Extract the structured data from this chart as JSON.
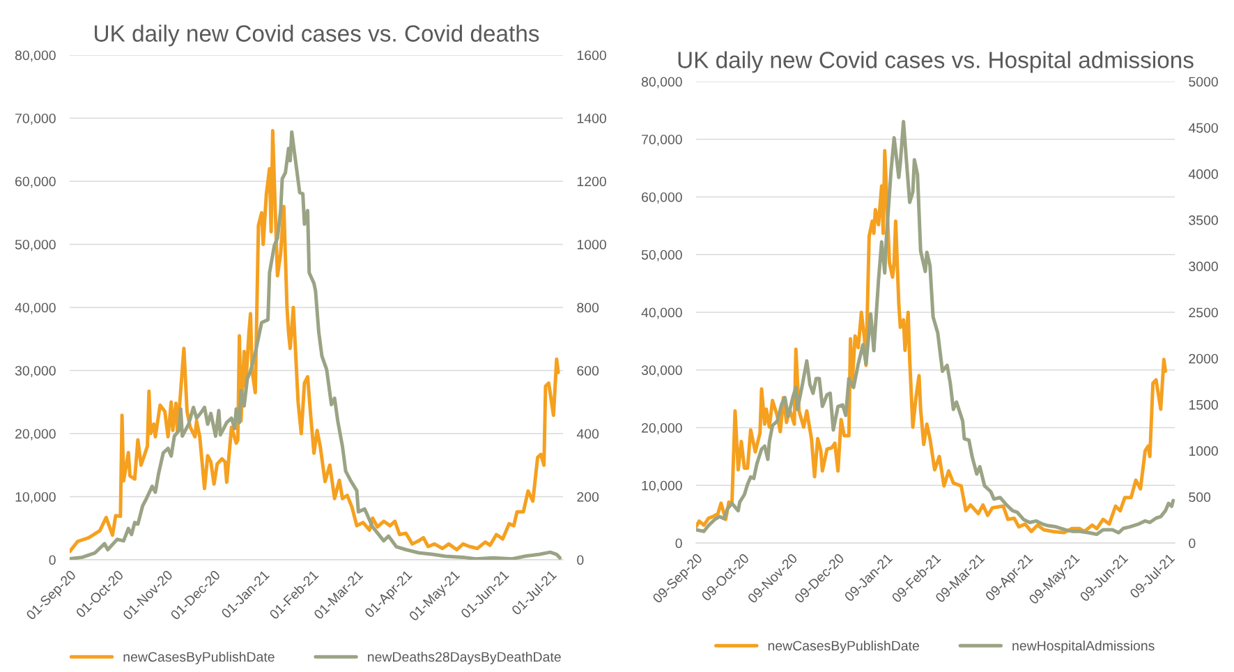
{
  "chart_data": [
    {
      "type": "line",
      "title": "UK daily new Covid cases vs. Covid deaths",
      "legend": "bottom",
      "grid": "y",
      "marker": "none",
      "line_style": "solid",
      "xlim": [
        "2020-09-01",
        "2021-07-09"
      ],
      "xticks": [
        {
          "value": "2020-09-01",
          "label": "01-Sep-20"
        },
        {
          "value": "2020-10-01",
          "label": "01-Oct-20"
        },
        {
          "value": "2020-11-01",
          "label": "01-Nov-20"
        },
        {
          "value": "2020-12-01",
          "label": "01-Dec-20"
        },
        {
          "value": "2021-01-01",
          "label": "01-Jan-21"
        },
        {
          "value": "2021-02-01",
          "label": "01-Feb-21"
        },
        {
          "value": "2021-03-01",
          "label": "01-Mar-21"
        },
        {
          "value": "2021-04-01",
          "label": "01-Apr-21"
        },
        {
          "value": "2021-05-01",
          "label": "01-May-21"
        },
        {
          "value": "2021-06-01",
          "label": "01-Jun-21"
        },
        {
          "value": "2021-07-01",
          "label": "01-Jul-21"
        }
      ],
      "ylim": [
        0,
        80000
      ],
      "yticks": [
        0,
        {
          "value": 10000,
          "label": "10,000"
        },
        {
          "value": 20000,
          "label": "20,000"
        },
        {
          "value": 30000,
          "label": "30,000"
        },
        {
          "value": 40000,
          "label": "40,000"
        },
        {
          "value": 50000,
          "label": "50,000"
        },
        {
          "value": 60000,
          "label": "60,000"
        },
        {
          "value": 70000,
          "label": "70,000"
        },
        {
          "value": 80000,
          "label": "80,000"
        }
      ],
      "y2lim": [
        0,
        1600
      ],
      "y2ticks": [
        0,
        200,
        400,
        600,
        800,
        1000,
        1200,
        1400,
        1600
      ],
      "series": [
        {
          "name": "newCasesByPublishDate",
          "color": "#f5a01f",
          "x": [
            "2020-09-01",
            "2020-09-06",
            "2020-09-13",
            "2020-09-20",
            "2020-09-24",
            "2020-09-28",
            "2020-09-30",
            "2020-10-03",
            "2020-10-04",
            "2020-10-05",
            "2020-10-08",
            "2020-10-09",
            "2020-10-12",
            "2020-10-14",
            "2020-10-16",
            "2020-10-20",
            "2020-10-21",
            "2020-10-22",
            "2020-10-24",
            "2020-10-25",
            "2020-10-28",
            "2020-10-31",
            "2020-11-02",
            "2020-11-04",
            "2020-11-05",
            "2020-11-07",
            "2020-11-08",
            "2020-11-12",
            "2020-11-14",
            "2020-11-16",
            "2020-11-19",
            "2020-11-20",
            "2020-11-22",
            "2020-11-25",
            "2020-11-27",
            "2020-11-29",
            "2020-12-01",
            "2020-12-03",
            "2020-12-06",
            "2020-12-08",
            "2020-12-09",
            "2020-12-12",
            "2020-12-15",
            "2020-12-16",
            "2020-12-17",
            "2020-12-18",
            "2020-12-20",
            "2020-12-21",
            "2020-12-23",
            "2020-12-24",
            "2020-12-25",
            "2020-12-27",
            "2020-12-29",
            "2020-12-31",
            "2021-01-01",
            "2021-01-03",
            "2021-01-05",
            "2021-01-06",
            "2021-01-07",
            "2021-01-08",
            "2021-01-10",
            "2021-01-12",
            "2021-01-14",
            "2021-01-16",
            "2021-01-17",
            "2021-01-18",
            "2021-01-20",
            "2021-01-23",
            "2021-01-25",
            "2021-01-27",
            "2021-01-29",
            "2021-01-31",
            "2021-02-02",
            "2021-02-04",
            "2021-02-06",
            "2021-02-09",
            "2021-02-12",
            "2021-02-15",
            "2021-02-18",
            "2021-02-20",
            "2021-02-23",
            "2021-02-26",
            "2021-03-01",
            "2021-03-05",
            "2021-03-09",
            "2021-03-11",
            "2021-03-14",
            "2021-03-18",
            "2021-03-22",
            "2021-03-25",
            "2021-03-28",
            "2021-04-01",
            "2021-04-05",
            "2021-04-09",
            "2021-04-12",
            "2021-04-15",
            "2021-04-19",
            "2021-04-24",
            "2021-04-28",
            "2021-05-03",
            "2021-05-07",
            "2021-05-11",
            "2021-05-16",
            "2021-05-21",
            "2021-05-24",
            "2021-05-28",
            "2021-06-01",
            "2021-06-05",
            "2021-06-08",
            "2021-06-10",
            "2021-06-14",
            "2021-06-17",
            "2021-06-20",
            "2021-06-23",
            "2021-06-25",
            "2021-06-27",
            "2021-06-28",
            "2021-06-30",
            "2021-07-03",
            "2021-07-05",
            "2021-07-06"
          ],
          "values": [
            1300,
            2900,
            3500,
            4600,
            6700,
            3900,
            7000,
            6900,
            22900,
            12500,
            17000,
            13300,
            12800,
            19000,
            15000,
            18000,
            26700,
            20000,
            21500,
            19500,
            24500,
            23500,
            19500,
            25000,
            20500,
            24800,
            20200,
            33500,
            23500,
            21000,
            19500,
            22000,
            19500,
            11300,
            16500,
            15500,
            12000,
            15200,
            16000,
            15500,
            12300,
            21000,
            18500,
            19000,
            35500,
            22000,
            33000,
            27500,
            36000,
            39000,
            30000,
            26500,
            53000,
            55000,
            50000,
            58000,
            62000,
            52000,
            68000,
            60000,
            45000,
            48500,
            56000,
            40000,
            36000,
            33500,
            40000,
            25000,
            20000,
            28000,
            29000,
            22700,
            16900,
            20500,
            17900,
            12400,
            15000,
            9700,
            12600,
            9700,
            10200,
            8300,
            5400,
            5900,
            4700,
            6600,
            5200,
            6100,
            5400,
            6100,
            4000,
            4200,
            2500,
            3000,
            3500,
            2100,
            2500,
            1800,
            2500,
            1600,
            2500,
            2100,
            1800,
            2800,
            2300,
            4000,
            3300,
            5700,
            5400,
            7600,
            7600,
            10900,
            9300,
            16200,
            16700,
            15000,
            27500,
            28000,
            22900,
            31800,
            29700
          ]
        },
        {
          "name": "newDeaths28DaysByDeathDate",
          "color": "#9aa384",
          "axis": "y2",
          "x": [
            "2020-09-01",
            "2020-09-09",
            "2020-09-17",
            "2020-09-23",
            "2020-09-25",
            "2020-10-01",
            "2020-10-05",
            "2020-10-08",
            "2020-10-10",
            "2020-10-12",
            "2020-10-14",
            "2020-10-17",
            "2020-10-19",
            "2020-10-23",
            "2020-10-25",
            "2020-10-27",
            "2020-10-30",
            "2020-11-02",
            "2020-11-04",
            "2020-11-06",
            "2020-11-09",
            "2020-11-10",
            "2020-11-11",
            "2020-11-15",
            "2020-11-18",
            "2020-11-20",
            "2020-11-23",
            "2020-11-25",
            "2020-11-27",
            "2020-11-29",
            "2020-12-02",
            "2020-12-04",
            "2020-12-05",
            "2020-12-09",
            "2020-12-12",
            "2020-12-14",
            "2020-12-15",
            "2020-12-17",
            "2020-12-18",
            "2020-12-20",
            "2020-12-22",
            "2020-12-24",
            "2020-12-27",
            "2020-12-31",
            "2021-01-04",
            "2021-01-05",
            "2021-01-08",
            "2021-01-10",
            "2021-01-12",
            "2021-01-13",
            "2021-01-15",
            "2021-01-17",
            "2021-01-18",
            "2021-01-19",
            "2021-01-22",
            "2021-01-24",
            "2021-01-26",
            "2021-01-27",
            "2021-01-29",
            "2021-01-30",
            "2021-02-02",
            "2021-02-03",
            "2021-02-05",
            "2021-02-07",
            "2021-02-10",
            "2021-02-13",
            "2021-02-15",
            "2021-02-17",
            "2021-02-20",
            "2021-02-22",
            "2021-02-25",
            "2021-03-01",
            "2021-03-02",
            "2021-03-06",
            "2021-03-11",
            "2021-03-18",
            "2021-03-21",
            "2021-03-26",
            "2021-04-01",
            "2021-04-09",
            "2021-04-18",
            "2021-04-26",
            "2021-05-07",
            "2021-05-15",
            "2021-05-26",
            "2021-06-07",
            "2021-06-16",
            "2021-06-24",
            "2021-07-01",
            "2021-07-05",
            "2021-07-07"
          ],
          "values": [
            3,
            8,
            22,
            51,
            32,
            65,
            60,
            99,
            80,
            118,
            113,
            171,
            190,
            233,
            214,
            272,
            339,
            353,
            329,
            392,
            411,
            478,
            392,
            430,
            483,
            449,
            468,
            483,
            430,
            464,
            392,
            473,
            396,
            435,
            449,
            416,
            478,
            435,
            536,
            488,
            574,
            598,
            656,
            752,
            761,
            910,
            996,
            1020,
            1107,
            1208,
            1227,
            1304,
            1265,
            1356,
            1241,
            1164,
            1160,
            1064,
            1107,
            910,
            876,
            852,
            723,
            646,
            603,
            492,
            512,
            440,
            358,
            281,
            252,
            219,
            152,
            161,
            104,
            60,
            75,
            41,
            32,
            22,
            17,
            11,
            8,
            3,
            6,
            3,
            12,
            17,
            24,
            17,
            6
          ]
        }
      ]
    },
    {
      "type": "line",
      "title": "UK daily new Covid cases vs. Hospital admissions",
      "legend": "bottom",
      "grid": "y",
      "marker": "none",
      "line_style": "solid",
      "xlim": [
        "2020-09-09",
        "2021-07-13"
      ],
      "xticks": [
        {
          "value": "2020-09-09",
          "label": "09-Sep-20"
        },
        {
          "value": "2020-10-09",
          "label": "09-Oct-20"
        },
        {
          "value": "2020-11-09",
          "label": "09-Nov-20"
        },
        {
          "value": "2020-12-09",
          "label": "09-Dec-20"
        },
        {
          "value": "2021-01-09",
          "label": "09-Jan-21"
        },
        {
          "value": "2021-02-09",
          "label": "09-Feb-21"
        },
        {
          "value": "2021-03-09",
          "label": "09-Mar-21"
        },
        {
          "value": "2021-04-09",
          "label": "09-Apr-21"
        },
        {
          "value": "2021-05-09",
          "label": "09-May-21"
        },
        {
          "value": "2021-06-09",
          "label": "09-Jun-21"
        },
        {
          "value": "2021-07-09",
          "label": "09-Jul-21"
        }
      ],
      "ylim": [
        0,
        80000
      ],
      "yticks": [
        0,
        {
          "value": 10000,
          "label": "10,000"
        },
        {
          "value": 20000,
          "label": "20,000"
        },
        {
          "value": 30000,
          "label": "30,000"
        },
        {
          "value": 40000,
          "label": "40,000"
        },
        {
          "value": 50000,
          "label": "50,000"
        },
        {
          "value": 60000,
          "label": "60,000"
        },
        {
          "value": 70000,
          "label": "70,000"
        },
        {
          "value": 80000,
          "label": "80,000"
        }
      ],
      "y2lim": [
        0,
        5000
      ],
      "y2ticks": [
        0,
        500,
        1000,
        1500,
        2000,
        2500,
        3000,
        3500,
        4000,
        4500,
        5000
      ],
      "series": [
        {
          "name": "newCasesByPublishDate",
          "color": "#f5a01f",
          "x": [
            "2020-09-09",
            "2020-09-11",
            "2020-09-14",
            "2020-09-17",
            "2020-09-20",
            "2020-09-23",
            "2020-09-25",
            "2020-09-28",
            "2020-09-30",
            "2020-10-02",
            "2020-10-04",
            "2020-10-06",
            "2020-10-08",
            "2020-10-10",
            "2020-10-12",
            "2020-10-14",
            "2020-10-17",
            "2020-10-20",
            "2020-10-21",
            "2020-10-23",
            "2020-10-24",
            "2020-10-26",
            "2020-10-28",
            "2020-10-31",
            "2020-11-02",
            "2020-11-04",
            "2020-11-06",
            "2020-11-08",
            "2020-11-11",
            "2020-11-12",
            "2020-11-14",
            "2020-11-17",
            "2020-11-19",
            "2020-11-22",
            "2020-11-24",
            "2020-11-26",
            "2020-11-28",
            "2020-11-29",
            "2020-12-02",
            "2020-12-05",
            "2020-12-07",
            "2020-12-09",
            "2020-12-11",
            "2020-12-13",
            "2020-12-16",
            "2020-12-17",
            "2020-12-18",
            "2020-12-20",
            "2020-12-22",
            "2020-12-24",
            "2020-12-26",
            "2020-12-27",
            "2020-12-29",
            "2020-12-31",
            "2021-01-01",
            "2021-01-02",
            "2021-01-04",
            "2021-01-06",
            "2021-01-07",
            "2021-01-08",
            "2021-01-11",
            "2021-01-13",
            "2021-01-14",
            "2021-01-15",
            "2021-01-17",
            "2021-01-18",
            "2021-01-20",
            "2021-01-21",
            "2021-01-23",
            "2021-01-24",
            "2021-01-26",
            "2021-01-28",
            "2021-01-30",
            "2021-01-31",
            "2021-02-02",
            "2021-02-04",
            "2021-02-06",
            "2021-02-09",
            "2021-02-12",
            "2021-02-15",
            "2021-02-18",
            "2021-02-21",
            "2021-02-26",
            "2021-03-01",
            "2021-03-04",
            "2021-03-09",
            "2021-03-12",
            "2021-03-15",
            "2021-03-18",
            "2021-03-25",
            "2021-03-28",
            "2021-04-01",
            "2021-04-04",
            "2021-04-08",
            "2021-04-12",
            "2021-04-16",
            "2021-04-20",
            "2021-04-26",
            "2021-05-03",
            "2021-05-08",
            "2021-05-13",
            "2021-05-16",
            "2021-05-21",
            "2021-05-24",
            "2021-05-28",
            "2021-06-01",
            "2021-06-05",
            "2021-06-08",
            "2021-06-11",
            "2021-06-15",
            "2021-06-18",
            "2021-06-21",
            "2021-06-24",
            "2021-06-26",
            "2021-06-27",
            "2021-06-29",
            "2021-07-01",
            "2021-07-04",
            "2021-07-06",
            "2021-07-07"
          ],
          "values": [
            2800,
            3800,
            3100,
            4300,
            4600,
            5100,
            6900,
            4100,
            7100,
            6900,
            22900,
            12700,
            17600,
            13000,
            13000,
            19600,
            15800,
            19100,
            26700,
            20600,
            23200,
            20100,
            24700,
            22100,
            19300,
            25200,
            20900,
            23200,
            20600,
            33600,
            22900,
            20100,
            22900,
            18100,
            11500,
            18100,
            16000,
            12500,
            16300,
            16500,
            17300,
            12500,
            21400,
            18600,
            18600,
            35400,
            27200,
            35900,
            33900,
            40000,
            35400,
            30800,
            53200,
            55800,
            53700,
            57800,
            55200,
            61900,
            53700,
            68000,
            48600,
            46100,
            48600,
            55800,
            41500,
            37400,
            38700,
            33400,
            40000,
            31800,
            20100,
            25200,
            29000,
            23200,
            17100,
            20600,
            18100,
            12700,
            15000,
            9900,
            12500,
            10400,
            9900,
            5600,
            6600,
            5100,
            6600,
            4800,
            6100,
            6400,
            4100,
            4300,
            2800,
            3300,
            2000,
            3100,
            2300,
            2000,
            1800,
            2500,
            2500,
            2000,
            3100,
            2500,
            4100,
            3300,
            6400,
            5600,
            7900,
            7900,
            10900,
            9400,
            16000,
            16800,
            15000,
            27700,
            28300,
            23200,
            31800,
            29800
          ]
        },
        {
          "name": "newHospitalAdmissions",
          "color": "#9aa384",
          "axis": "y2",
          "x": [
            "2020-09-09",
            "2020-09-14",
            "2020-09-17",
            "2020-09-21",
            "2020-09-24",
            "2020-09-27",
            "2020-09-29",
            "2020-10-02",
            "2020-10-06",
            "2020-10-07",
            "2020-10-10",
            "2020-10-12",
            "2020-10-14",
            "2020-10-16",
            "2020-10-18",
            "2020-10-21",
            "2020-10-23",
            "2020-10-25",
            "2020-10-26",
            "2020-10-28",
            "2020-10-31",
            "2020-11-03",
            "2020-11-05",
            "2020-11-07",
            "2020-11-10",
            "2020-11-12",
            "2020-11-13",
            "2020-11-16",
            "2020-11-19",
            "2020-11-21",
            "2020-11-23",
            "2020-11-25",
            "2020-11-27",
            "2020-11-29",
            "2020-12-02",
            "2020-12-04",
            "2020-12-06",
            "2020-12-09",
            "2020-12-12",
            "2020-12-14",
            "2020-12-16",
            "2020-12-19",
            "2020-12-22",
            "2020-12-25",
            "2020-12-27",
            "2020-12-30",
            "2021-01-01",
            "2021-01-04",
            "2021-01-06",
            "2021-01-08",
            "2021-01-09",
            "2021-01-12",
            "2021-01-14",
            "2021-01-17",
            "2021-01-18",
            "2021-01-20",
            "2021-01-22",
            "2021-01-24",
            "2021-01-26",
            "2021-01-27",
            "2021-01-29",
            "2021-01-31",
            "2021-02-03",
            "2021-02-04",
            "2021-02-06",
            "2021-02-08",
            "2021-02-11",
            "2021-02-14",
            "2021-02-17",
            "2021-02-19",
            "2021-02-21",
            "2021-02-23",
            "2021-02-27",
            "2021-02-28",
            "2021-03-03",
            "2021-03-05",
            "2021-03-08",
            "2021-03-10",
            "2021-03-13",
            "2021-03-17",
            "2021-03-19",
            "2021-03-23",
            "2021-03-27",
            "2021-03-31",
            "2021-04-03",
            "2021-04-07",
            "2021-04-11",
            "2021-04-15",
            "2021-04-19",
            "2021-04-22",
            "2021-04-28",
            "2021-05-04",
            "2021-05-08",
            "2021-05-13",
            "2021-05-19",
            "2021-05-24",
            "2021-05-28",
            "2021-06-03",
            "2021-06-07",
            "2021-06-10",
            "2021-06-14",
            "2021-06-20",
            "2021-06-24",
            "2021-06-27",
            "2021-07-01",
            "2021-07-04",
            "2021-07-07",
            "2021-07-09",
            "2021-07-11",
            "2021-07-12"
          ],
          "values": [
            143,
            127,
            191,
            255,
            286,
            264,
            366,
            430,
            350,
            445,
            525,
            636,
            716,
            700,
            859,
            1018,
            1050,
            907,
            1098,
            1273,
            1321,
            1511,
            1575,
            1368,
            1575,
            1686,
            1448,
            1702,
            1973,
            1718,
            1623,
            1782,
            1782,
            1480,
            1607,
            1623,
            1225,
            1480,
            1496,
            1384,
            1782,
            1686,
            1941,
            2148,
            1941,
            2482,
            2084,
            2848,
            3262,
            2927,
            3293,
            4025,
            4391,
            3962,
            4121,
            4566,
            4121,
            3691,
            3802,
            4152,
            3993,
            3166,
            2943,
            3150,
            3007,
            2450,
            2275,
            1862,
            1925,
            1734,
            1448,
            1527,
            1321,
            1130,
            1114,
            939,
            748,
            827,
            620,
            557,
            477,
            493,
            414,
            350,
            334,
            255,
            223,
            239,
            207,
            191,
            175,
            143,
            127,
            127,
            111,
            95,
            143,
            143,
            111,
            159,
            175,
            207,
            239,
            223,
            270,
            286,
            350,
            430,
            398,
            461
          ]
        }
      ]
    }
  ]
}
